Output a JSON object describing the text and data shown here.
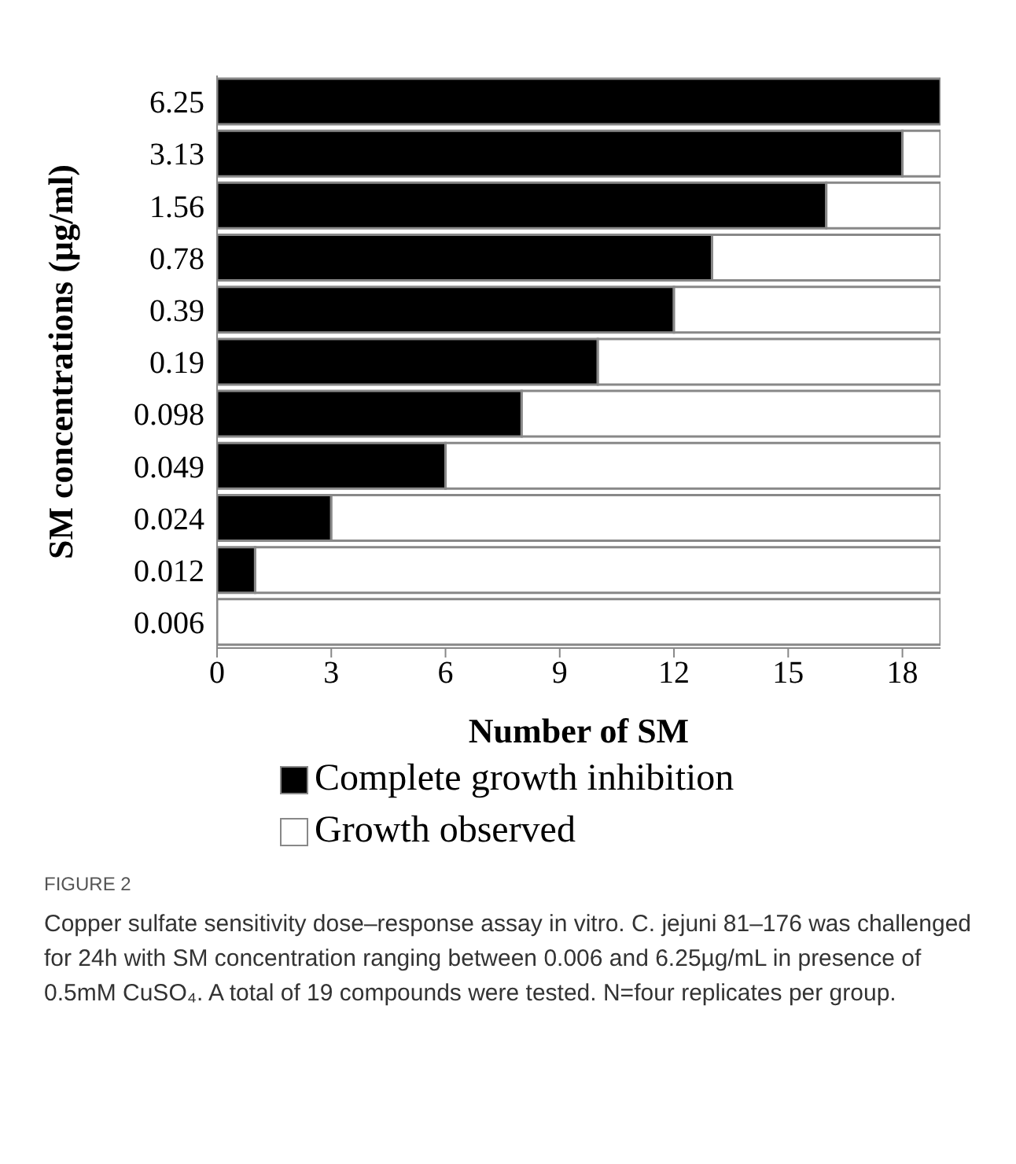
{
  "chart_data": {
    "type": "bar",
    "orientation": "horizontal",
    "stacked": true,
    "categories": [
      "6.25",
      "3.13",
      "1.56",
      "0.78",
      "0.39",
      "0.19",
      "0.098",
      "0.049",
      "0.024",
      "0.012",
      "0.006"
    ],
    "series": [
      {
        "name": "Complete growth inhibition",
        "color": "#000000",
        "values": [
          19,
          18,
          16,
          13,
          12,
          10,
          8,
          6,
          3,
          1,
          0
        ]
      },
      {
        "name": "Growth observed",
        "color": "#ffffff",
        "values": [
          0,
          1,
          3,
          6,
          7,
          9,
          11,
          13,
          16,
          18,
          19
        ]
      }
    ],
    "xlim": [
      0,
      19
    ],
    "xticks": [
      0,
      3,
      6,
      9,
      12,
      15,
      18
    ],
    "xlabel": "Number of SM",
    "ylabel": "SM concentrations (µg/ml)",
    "legend": "bottom",
    "grid": false,
    "annotations": [
      "FIGURE 2",
      "Copper sulfate sensitivity dose–response assay in vitro. C. jejuni 81–176 was challenged for 24h with SM concentration ranging between 0.006 and 6.25µg/mL in presence of 0.5mM CuSO₄. A total of 19 compounds were tested. N=four replicates per group."
    ]
  }
}
